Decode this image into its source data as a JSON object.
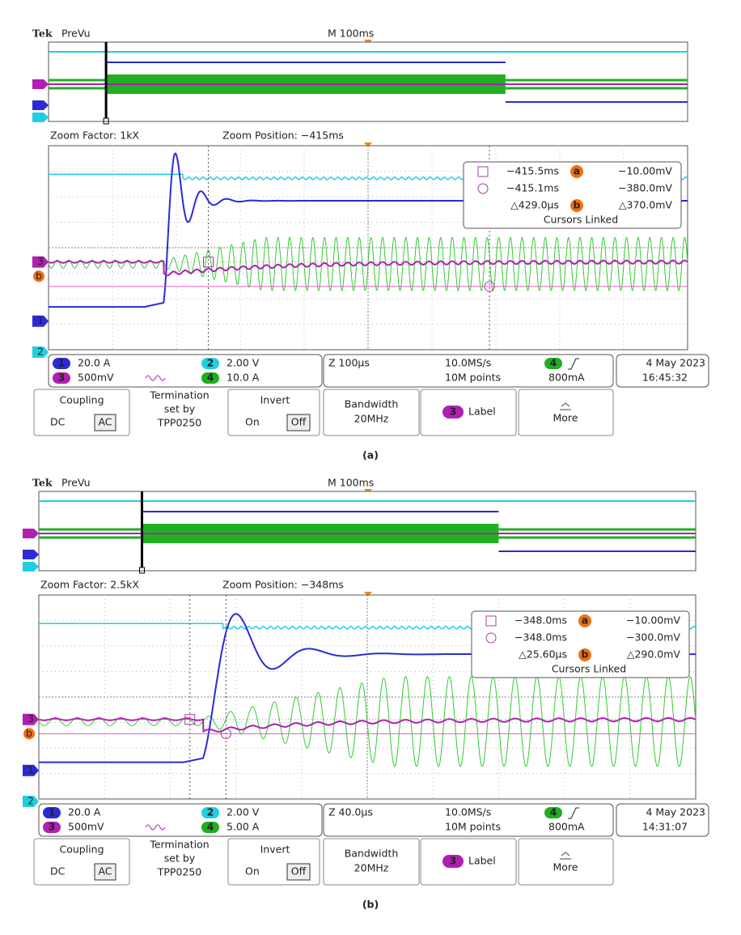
{
  "panels": [
    {
      "caption": "(a)",
      "header": {
        "brand": "Tek",
        "mode": "PreVu",
        "timebase": "M 100ms"
      },
      "zoom": {
        "factor": "Zoom Factor: 1kX",
        "position": "Zoom Position: −415ms"
      },
      "cursors": {
        "t1": "−415.5ms",
        "t2": "−415.1ms",
        "dt": "△429.0µs",
        "a_label": "a",
        "v1": "−10.00mV",
        "v2": "−380.0mV",
        "b_label": "b",
        "dv": "△370.0mV",
        "linked": "Cursors Linked"
      },
      "channels": [
        {
          "number": "1",
          "scale": "20.0 A"
        },
        {
          "number": "2",
          "scale": "2.00 V"
        },
        {
          "number": "3",
          "scale": "500mV"
        },
        {
          "number": "4",
          "scale": "10.0 A"
        }
      ],
      "acquisition": {
        "zoom_timebase": "Z 100µs",
        "sample_rate": "10.0MS/s",
        "record_length": "10M points",
        "trigger_channel": "4",
        "trigger_level": "800mA"
      },
      "date": "4 May 2023",
      "time": "16:45:32",
      "menu": {
        "coupling": "Coupling",
        "dc": "DC",
        "ac": "AC",
        "termination": [
          "Termination",
          "set by",
          "TPP0250"
        ],
        "invert": "Invert",
        "on": "On",
        "off": "Off",
        "bandwidth": "Bandwidth",
        "bandwidth_value": "20MHz",
        "label_channel": "3",
        "label": "Label",
        "more": "More"
      }
    },
    {
      "caption": "(b)",
      "header": {
        "brand": "Tek",
        "mode": "PreVu",
        "timebase": "M 100ms"
      },
      "zoom": {
        "factor": "Zoom Factor: 2.5kX",
        "position": "Zoom Position: −348ms"
      },
      "cursors": {
        "t1": "−348.0ms",
        "t2": "−348.0ms",
        "dt": "△25.60µs",
        "a_label": "a",
        "v1": "−10.00mV",
        "v2": "−300.0mV",
        "b_label": "b",
        "dv": "△290.0mV",
        "linked": "Cursors Linked"
      },
      "channels": [
        {
          "number": "1",
          "scale": "20.0 A"
        },
        {
          "number": "2",
          "scale": "2.00 V"
        },
        {
          "number": "3",
          "scale": "500mV"
        },
        {
          "number": "4",
          "scale": "5.00 A"
        }
      ],
      "acquisition": {
        "zoom_timebase": "Z 40.0µs",
        "sample_rate": "10.0MS/s",
        "record_length": "10M points",
        "trigger_channel": "4",
        "trigger_level": "800mA"
      },
      "date": "4 May 2023",
      "time": "14:31:07",
      "menu": {
        "coupling": "Coupling",
        "dc": "DC",
        "ac": "AC",
        "termination": [
          "Termination",
          "set by",
          "TPP0250"
        ],
        "invert": "Invert",
        "on": "On",
        "off": "Off",
        "bandwidth": "Bandwidth",
        "bandwidth_value": "20MHz",
        "label_channel": "3",
        "label": "Label",
        "more": "More"
      }
    }
  ]
}
